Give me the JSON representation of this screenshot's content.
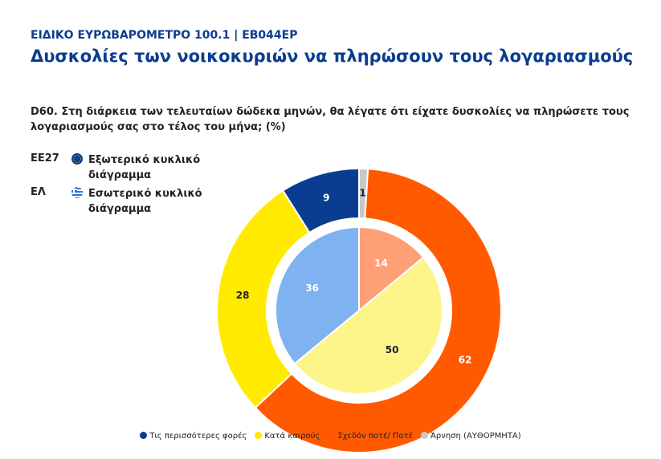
{
  "chart_data": {
    "type": "nested-donut",
    "header": "ΕΙΔΙΚΟ ΕΥΡΩΒΑΡΟΜΕΤΡΟ 100.1 | EB044EP",
    "title": "Δυσκολίες των νοικοκυριών να πληρώσουν τους λογαριασμούς",
    "subtitle": "D60. Στη διάρκεια των τελευταίων δώδεκα μηνών, θα λέγατε ότι είχατε δυσκολίες να πληρώσετε τους λογαριασμούς σας στο τέλος του μήνα; (%)",
    "categories": [
      "Τις περισσότερες φορές",
      "Κατά καιρούς",
      "Σχεδόν ποτέ/ Ποτέ",
      "Άρνηση (ΑΥΘΟΡΜΗΤΑ)"
    ],
    "colors": [
      "#0a3d91",
      "#ffea00",
      "#ff5a00",
      "#c8c8c8"
    ],
    "series": [
      {
        "name": "ΕΕ27",
        "ring_label": "Εξωτερικό κυκλικό διάγραμμα",
        "values": [
          9,
          28,
          62,
          1
        ],
        "colors": [
          "#0a3d91",
          "#ffea00",
          "#ff5a00",
          "#c8c8c8"
        ]
      },
      {
        "name": "ΕΛ",
        "ring_label": "Εσωτερικό κυκλικό διάγραμμα",
        "values": [
          36,
          50,
          14,
          0
        ],
        "colors": [
          "#7fb2f0",
          "#fdf58a",
          "#ff9f75",
          "#e0e0e0"
        ]
      }
    ]
  }
}
